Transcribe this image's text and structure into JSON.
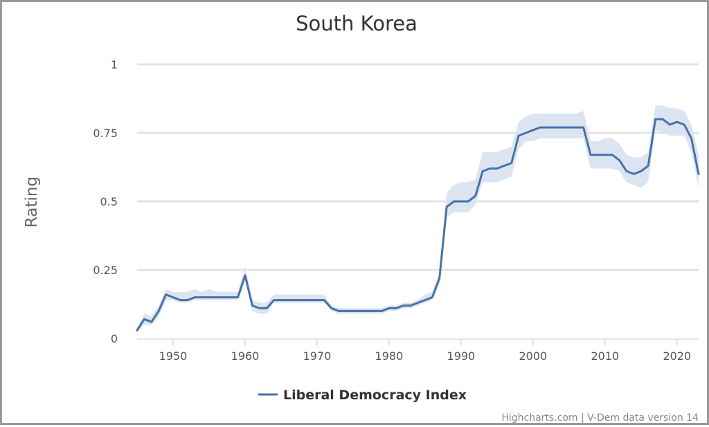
{
  "chart_data": {
    "type": "line",
    "title": "South Korea",
    "xlabel": "",
    "ylabel": "Rating",
    "xlim": [
      1945,
      2023
    ],
    "ylim": [
      0,
      1
    ],
    "yticks": [
      {
        "value": 0,
        "label": "0"
      },
      {
        "value": 0.25,
        "label": "0.25"
      },
      {
        "value": 0.5,
        "label": "0.5"
      },
      {
        "value": 0.75,
        "label": "0.75"
      },
      {
        "value": 1,
        "label": "1"
      }
    ],
    "xticks": [
      {
        "value": 1950,
        "label": "1950"
      },
      {
        "value": 1960,
        "label": "1960"
      },
      {
        "value": 1970,
        "label": "1970"
      },
      {
        "value": 1980,
        "label": "1980"
      },
      {
        "value": 1990,
        "label": "1990"
      },
      {
        "value": 2000,
        "label": "2000"
      },
      {
        "value": 2010,
        "label": "2010"
      },
      {
        "value": 2020,
        "label": "2020"
      }
    ],
    "grid": true,
    "legend_position": "bottom-center",
    "series": [
      {
        "name": "Liberal Democracy Index",
        "color": "#4572a7",
        "band_color": "#dce4f2",
        "x": [
          1945,
          1946,
          1947,
          1948,
          1949,
          1950,
          1951,
          1952,
          1953,
          1954,
          1955,
          1956,
          1957,
          1958,
          1959,
          1960,
          1961,
          1962,
          1963,
          1964,
          1965,
          1966,
          1967,
          1968,
          1969,
          1970,
          1971,
          1972,
          1973,
          1974,
          1975,
          1976,
          1977,
          1978,
          1979,
          1980,
          1981,
          1982,
          1983,
          1984,
          1985,
          1986,
          1987,
          1988,
          1989,
          1990,
          1991,
          1992,
          1993,
          1994,
          1995,
          1996,
          1997,
          1998,
          1999,
          2000,
          2001,
          2002,
          2003,
          2004,
          2005,
          2006,
          2007,
          2008,
          2009,
          2010,
          2011,
          2012,
          2013,
          2014,
          2015,
          2016,
          2017,
          2018,
          2019,
          2020,
          2021,
          2022,
          2023
        ],
        "values": [
          0.03,
          0.07,
          0.06,
          0.1,
          0.16,
          0.15,
          0.14,
          0.14,
          0.15,
          0.15,
          0.15,
          0.15,
          0.15,
          0.15,
          0.15,
          0.23,
          0.12,
          0.11,
          0.11,
          0.14,
          0.14,
          0.14,
          0.14,
          0.14,
          0.14,
          0.14,
          0.14,
          0.11,
          0.1,
          0.1,
          0.1,
          0.1,
          0.1,
          0.1,
          0.1,
          0.11,
          0.11,
          0.12,
          0.12,
          0.13,
          0.14,
          0.15,
          0.22,
          0.48,
          0.5,
          0.5,
          0.5,
          0.52,
          0.61,
          0.62,
          0.62,
          0.63,
          0.64,
          0.74,
          0.75,
          0.76,
          0.77,
          0.77,
          0.77,
          0.77,
          0.77,
          0.77,
          0.77,
          0.67,
          0.67,
          0.67,
          0.67,
          0.65,
          0.61,
          0.6,
          0.61,
          0.63,
          0.8,
          0.8,
          0.78,
          0.79,
          0.78,
          0.73,
          0.6
        ],
        "lower": [
          0.02,
          0.05,
          0.05,
          0.08,
          0.14,
          0.14,
          0.13,
          0.13,
          0.14,
          0.14,
          0.14,
          0.14,
          0.14,
          0.14,
          0.14,
          0.21,
          0.1,
          0.09,
          0.09,
          0.13,
          0.13,
          0.13,
          0.13,
          0.13,
          0.13,
          0.13,
          0.13,
          0.1,
          0.09,
          0.09,
          0.09,
          0.09,
          0.09,
          0.09,
          0.09,
          0.1,
          0.1,
          0.11,
          0.11,
          0.12,
          0.13,
          0.14,
          0.2,
          0.44,
          0.46,
          0.46,
          0.46,
          0.49,
          0.57,
          0.57,
          0.57,
          0.58,
          0.59,
          0.69,
          0.72,
          0.72,
          0.73,
          0.73,
          0.73,
          0.73,
          0.73,
          0.73,
          0.73,
          0.62,
          0.62,
          0.62,
          0.62,
          0.61,
          0.57,
          0.56,
          0.55,
          0.57,
          0.76,
          0.75,
          0.74,
          0.74,
          0.74,
          0.68,
          0.55
        ],
        "upper": [
          0.04,
          0.09,
          0.08,
          0.12,
          0.18,
          0.17,
          0.17,
          0.17,
          0.18,
          0.17,
          0.18,
          0.17,
          0.17,
          0.17,
          0.17,
          0.26,
          0.14,
          0.13,
          0.13,
          0.16,
          0.16,
          0.16,
          0.16,
          0.16,
          0.16,
          0.16,
          0.16,
          0.12,
          0.11,
          0.11,
          0.11,
          0.11,
          0.11,
          0.11,
          0.11,
          0.12,
          0.12,
          0.13,
          0.13,
          0.14,
          0.16,
          0.17,
          0.24,
          0.53,
          0.56,
          0.57,
          0.57,
          0.58,
          0.68,
          0.68,
          0.68,
          0.69,
          0.7,
          0.79,
          0.81,
          0.82,
          0.82,
          0.82,
          0.82,
          0.82,
          0.82,
          0.82,
          0.83,
          0.72,
          0.72,
          0.73,
          0.73,
          0.71,
          0.67,
          0.66,
          0.66,
          0.68,
          0.85,
          0.85,
          0.84,
          0.84,
          0.83,
          0.78,
          0.67
        ]
      }
    ],
    "credits": "Highcharts.com | V-Dem data version 14"
  }
}
